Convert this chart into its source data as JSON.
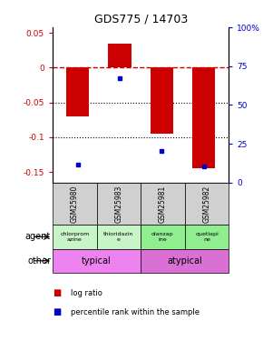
{
  "title": "GDS775 / 14703",
  "samples": [
    "GSM25980",
    "GSM25983",
    "GSM25981",
    "GSM25982"
  ],
  "log_ratios": [
    -0.07,
    0.035,
    -0.095,
    -0.145
  ],
  "percentile_ranks": [
    0.115,
    0.67,
    0.205,
    0.105
  ],
  "ylim_left": [
    -0.165,
    0.058
  ],
  "ylim_right": [
    0,
    1.0
  ],
  "y_ticks_left": [
    -0.15,
    -0.1,
    -0.05,
    0.0,
    0.05
  ],
  "y_tick_labels_left": [
    "-0.15",
    "-0.1",
    "-0.05",
    "0",
    "0.05"
  ],
  "y_ticks_right": [
    0,
    0.25,
    0.5,
    0.75,
    1.0
  ],
  "y_tick_labels_right": [
    "0",
    "25",
    "50",
    "75",
    "100%"
  ],
  "agents": [
    "chlorprom\nazine",
    "thioridazin\ne",
    "olanzap\nine",
    "quetiapi\nne"
  ],
  "agent_colors": [
    "#c8f5c8",
    "#c8f5c8",
    "#90ee90",
    "#90ee90"
  ],
  "typical_color": "#ee82ee",
  "atypical_color": "#da70d6",
  "bar_color": "#cc0000",
  "dot_color": "#0000cc",
  "hline_color": "#cc0000",
  "dotline_color": "#000000",
  "bar_width": 0.55,
  "sample_bg": "#d0d0d0"
}
